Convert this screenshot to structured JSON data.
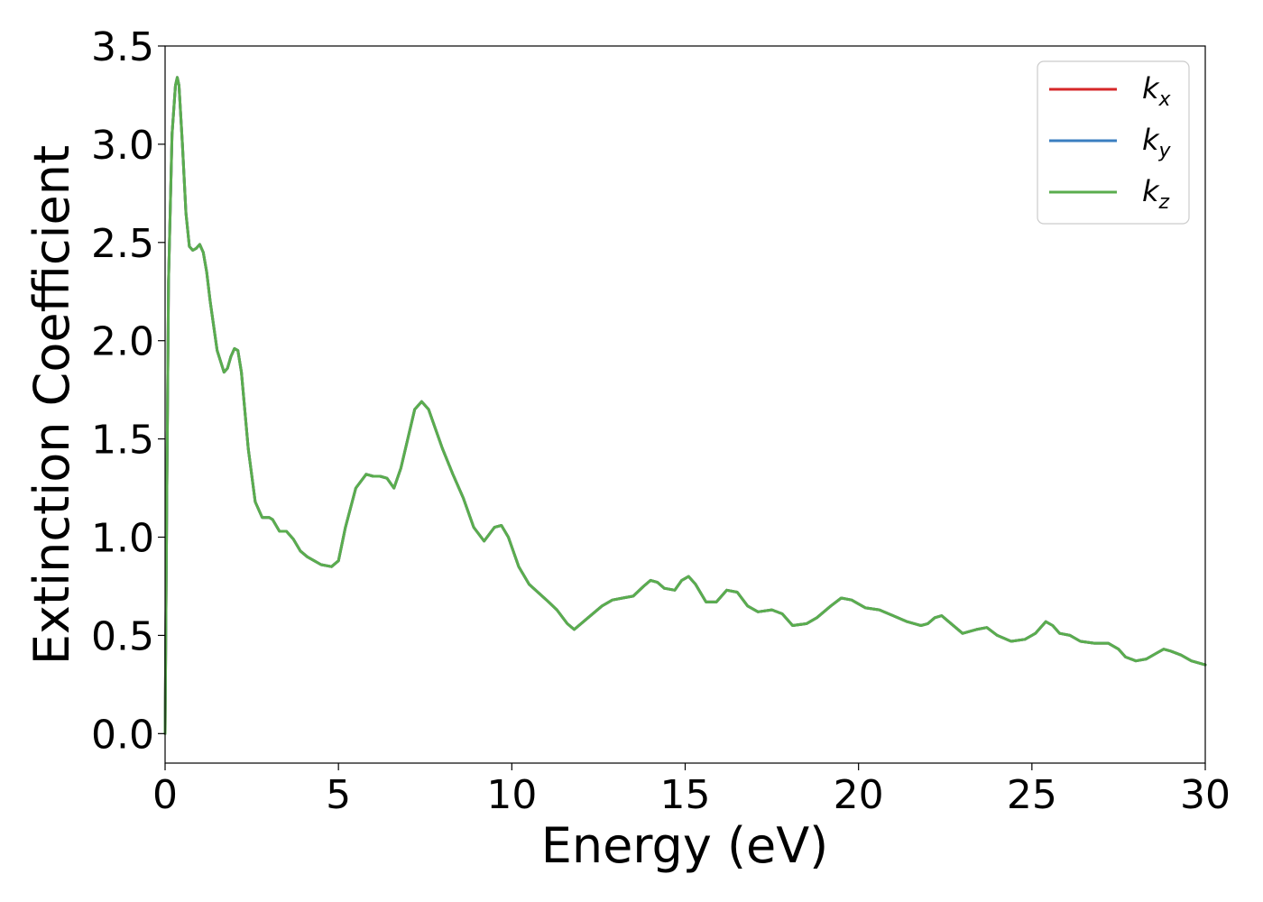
{
  "chart_data": {
    "type": "line",
    "title": "",
    "xlabel": "Energy (eV)",
    "ylabel": "Extinction Coefficient",
    "xlim": [
      0,
      30
    ],
    "ylim": [
      -0.15,
      3.5
    ],
    "xticks": [
      0,
      5,
      10,
      15,
      20,
      25,
      30
    ],
    "xtick_labels": [
      "0",
      "5",
      "10",
      "15",
      "20",
      "25",
      "30"
    ],
    "yticks": [
      0.0,
      0.5,
      1.0,
      1.5,
      2.0,
      2.5,
      3.0,
      3.5
    ],
    "ytick_labels": [
      "0.0",
      "0.5",
      "1.0",
      "1.5",
      "2.0",
      "2.5",
      "3.0",
      "3.5"
    ],
    "grid": false,
    "legend_position": "top-right",
    "series": [
      {
        "name": "kx",
        "base": "k",
        "sub": "x",
        "color": "#d62728",
        "x": [
          0,
          0.05,
          0.1,
          0.2,
          0.3,
          0.35,
          0.4,
          0.5,
          0.6,
          0.7,
          0.8,
          0.9,
          1.0,
          1.1,
          1.2,
          1.3,
          1.5,
          1.7,
          1.8,
          1.9,
          2.0,
          2.1,
          2.2,
          2.4,
          2.6,
          2.8,
          3.0,
          3.1,
          3.3,
          3.5,
          3.7,
          3.9,
          4.1,
          4.3,
          4.5,
          4.8,
          5.0,
          5.2,
          5.5,
          5.8,
          6.0,
          6.2,
          6.4,
          6.6,
          6.8,
          7.0,
          7.2,
          7.4,
          7.6,
          7.8,
          8.0,
          8.3,
          8.6,
          8.9,
          9.2,
          9.5,
          9.7,
          9.9,
          10.2,
          10.5,
          11.0,
          11.3,
          11.6,
          11.8,
          12.2,
          12.6,
          12.9,
          13.2,
          13.5,
          13.8,
          14.0,
          14.2,
          14.4,
          14.7,
          14.9,
          15.1,
          15.3,
          15.6,
          15.9,
          16.2,
          16.5,
          16.8,
          17.1,
          17.5,
          17.8,
          18.1,
          18.5,
          18.8,
          19.2,
          19.5,
          19.8,
          20.2,
          20.6,
          21.0,
          21.4,
          21.8,
          22.0,
          22.2,
          22.4,
          22.6,
          23.0,
          23.4,
          23.7,
          24.0,
          24.4,
          24.8,
          25.1,
          25.4,
          25.6,
          25.8,
          26.1,
          26.4,
          26.8,
          27.2,
          27.5,
          27.7,
          28.0,
          28.3,
          28.6,
          28.8,
          29.0,
          29.3,
          29.6,
          30.0
        ],
        "y": [
          0.0,
          1.2,
          2.3,
          3.05,
          3.3,
          3.34,
          3.3,
          3.0,
          2.65,
          2.48,
          2.46,
          2.47,
          2.49,
          2.45,
          2.35,
          2.2,
          1.95,
          1.84,
          1.86,
          1.92,
          1.96,
          1.95,
          1.84,
          1.45,
          1.18,
          1.1,
          1.1,
          1.09,
          1.03,
          1.03,
          0.99,
          0.93,
          0.9,
          0.88,
          0.86,
          0.85,
          0.88,
          1.05,
          1.25,
          1.32,
          1.31,
          1.31,
          1.3,
          1.25,
          1.35,
          1.5,
          1.65,
          1.69,
          1.65,
          1.55,
          1.45,
          1.32,
          1.2,
          1.05,
          0.98,
          1.05,
          1.06,
          1.0,
          0.85,
          0.76,
          0.68,
          0.63,
          0.56,
          0.53,
          0.59,
          0.65,
          0.68,
          0.69,
          0.7,
          0.75,
          0.78,
          0.77,
          0.74,
          0.73,
          0.78,
          0.8,
          0.76,
          0.67,
          0.67,
          0.73,
          0.72,
          0.65,
          0.62,
          0.63,
          0.61,
          0.55,
          0.56,
          0.59,
          0.65,
          0.69,
          0.68,
          0.64,
          0.63,
          0.6,
          0.57,
          0.55,
          0.56,
          0.59,
          0.6,
          0.57,
          0.51,
          0.53,
          0.54,
          0.5,
          0.47,
          0.48,
          0.51,
          0.57,
          0.55,
          0.51,
          0.5,
          0.47,
          0.46,
          0.46,
          0.43,
          0.39,
          0.37,
          0.38,
          0.41,
          0.43,
          0.42,
          0.4,
          0.37,
          0.35
        ]
      },
      {
        "name": "ky",
        "base": "k",
        "sub": "y",
        "color": "#3a7ec0",
        "x": [
          0,
          0.05,
          0.1,
          0.2,
          0.3,
          0.35,
          0.4,
          0.5,
          0.6,
          0.7,
          0.8,
          0.9,
          1.0,
          1.1,
          1.2,
          1.3,
          1.5,
          1.7,
          1.8,
          1.9,
          2.0,
          2.1,
          2.2,
          2.4,
          2.6,
          2.8,
          3.0,
          3.1,
          3.3,
          3.5,
          3.7,
          3.9,
          4.1,
          4.3,
          4.5,
          4.8,
          5.0,
          5.2,
          5.5,
          5.8,
          6.0,
          6.2,
          6.4,
          6.6,
          6.8,
          7.0,
          7.2,
          7.4,
          7.6,
          7.8,
          8.0,
          8.3,
          8.6,
          8.9,
          9.2,
          9.5,
          9.7,
          9.9,
          10.2,
          10.5,
          11.0,
          11.3,
          11.6,
          11.8,
          12.2,
          12.6,
          12.9,
          13.2,
          13.5,
          13.8,
          14.0,
          14.2,
          14.4,
          14.7,
          14.9,
          15.1,
          15.3,
          15.6,
          15.9,
          16.2,
          16.5,
          16.8,
          17.1,
          17.5,
          17.8,
          18.1,
          18.5,
          18.8,
          19.2,
          19.5,
          19.8,
          20.2,
          20.6,
          21.0,
          21.4,
          21.8,
          22.0,
          22.2,
          22.4,
          22.6,
          23.0,
          23.4,
          23.7,
          24.0,
          24.4,
          24.8,
          25.1,
          25.4,
          25.6,
          25.8,
          26.1,
          26.4,
          26.8,
          27.2,
          27.5,
          27.7,
          28.0,
          28.3,
          28.6,
          28.8,
          29.0,
          29.3,
          29.6,
          30.0
        ],
        "y": [
          0.0,
          1.2,
          2.3,
          3.05,
          3.3,
          3.34,
          3.3,
          3.0,
          2.65,
          2.48,
          2.46,
          2.47,
          2.49,
          2.45,
          2.35,
          2.2,
          1.95,
          1.84,
          1.86,
          1.92,
          1.96,
          1.95,
          1.84,
          1.45,
          1.18,
          1.1,
          1.1,
          1.09,
          1.03,
          1.03,
          0.99,
          0.93,
          0.9,
          0.88,
          0.86,
          0.85,
          0.88,
          1.05,
          1.25,
          1.32,
          1.31,
          1.31,
          1.3,
          1.25,
          1.35,
          1.5,
          1.65,
          1.69,
          1.65,
          1.55,
          1.45,
          1.32,
          1.2,
          1.05,
          0.98,
          1.05,
          1.06,
          1.0,
          0.85,
          0.76,
          0.68,
          0.63,
          0.56,
          0.53,
          0.59,
          0.65,
          0.68,
          0.69,
          0.7,
          0.75,
          0.78,
          0.77,
          0.74,
          0.73,
          0.78,
          0.8,
          0.76,
          0.67,
          0.67,
          0.73,
          0.72,
          0.65,
          0.62,
          0.63,
          0.61,
          0.55,
          0.56,
          0.59,
          0.65,
          0.69,
          0.68,
          0.64,
          0.63,
          0.6,
          0.57,
          0.55,
          0.56,
          0.59,
          0.6,
          0.57,
          0.51,
          0.53,
          0.54,
          0.5,
          0.47,
          0.48,
          0.51,
          0.57,
          0.55,
          0.51,
          0.5,
          0.47,
          0.46,
          0.46,
          0.43,
          0.39,
          0.37,
          0.38,
          0.41,
          0.43,
          0.42,
          0.4,
          0.37,
          0.35
        ]
      },
      {
        "name": "kz",
        "base": "k",
        "sub": "z",
        "color": "#5aad4e",
        "x": [
          0,
          0.05,
          0.1,
          0.2,
          0.3,
          0.35,
          0.4,
          0.5,
          0.6,
          0.7,
          0.8,
          0.9,
          1.0,
          1.1,
          1.2,
          1.3,
          1.5,
          1.7,
          1.8,
          1.9,
          2.0,
          2.1,
          2.2,
          2.4,
          2.6,
          2.8,
          3.0,
          3.1,
          3.3,
          3.5,
          3.7,
          3.9,
          4.1,
          4.3,
          4.5,
          4.8,
          5.0,
          5.2,
          5.5,
          5.8,
          6.0,
          6.2,
          6.4,
          6.6,
          6.8,
          7.0,
          7.2,
          7.4,
          7.6,
          7.8,
          8.0,
          8.3,
          8.6,
          8.9,
          9.2,
          9.5,
          9.7,
          9.9,
          10.2,
          10.5,
          11.0,
          11.3,
          11.6,
          11.8,
          12.2,
          12.6,
          12.9,
          13.2,
          13.5,
          13.8,
          14.0,
          14.2,
          14.4,
          14.7,
          14.9,
          15.1,
          15.3,
          15.6,
          15.9,
          16.2,
          16.5,
          16.8,
          17.1,
          17.5,
          17.8,
          18.1,
          18.5,
          18.8,
          19.2,
          19.5,
          19.8,
          20.2,
          20.6,
          21.0,
          21.4,
          21.8,
          22.0,
          22.2,
          22.4,
          22.6,
          23.0,
          23.4,
          23.7,
          24.0,
          24.4,
          24.8,
          25.1,
          25.4,
          25.6,
          25.8,
          26.1,
          26.4,
          26.8,
          27.2,
          27.5,
          27.7,
          28.0,
          28.3,
          28.6,
          28.8,
          29.0,
          29.3,
          29.6,
          30.0
        ],
        "y": [
          0.0,
          1.2,
          2.3,
          3.05,
          3.3,
          3.34,
          3.3,
          3.0,
          2.65,
          2.48,
          2.46,
          2.47,
          2.49,
          2.45,
          2.35,
          2.2,
          1.95,
          1.84,
          1.86,
          1.92,
          1.96,
          1.95,
          1.84,
          1.45,
          1.18,
          1.1,
          1.1,
          1.09,
          1.03,
          1.03,
          0.99,
          0.93,
          0.9,
          0.88,
          0.86,
          0.85,
          0.88,
          1.05,
          1.25,
          1.32,
          1.31,
          1.31,
          1.3,
          1.25,
          1.35,
          1.5,
          1.65,
          1.69,
          1.65,
          1.55,
          1.45,
          1.32,
          1.2,
          1.05,
          0.98,
          1.05,
          1.06,
          1.0,
          0.85,
          0.76,
          0.68,
          0.63,
          0.56,
          0.53,
          0.59,
          0.65,
          0.68,
          0.69,
          0.7,
          0.75,
          0.78,
          0.77,
          0.74,
          0.73,
          0.78,
          0.8,
          0.76,
          0.67,
          0.67,
          0.73,
          0.72,
          0.65,
          0.62,
          0.63,
          0.61,
          0.55,
          0.56,
          0.59,
          0.65,
          0.69,
          0.68,
          0.64,
          0.63,
          0.6,
          0.57,
          0.55,
          0.56,
          0.59,
          0.6,
          0.57,
          0.51,
          0.53,
          0.54,
          0.5,
          0.47,
          0.48,
          0.51,
          0.57,
          0.55,
          0.51,
          0.5,
          0.47,
          0.46,
          0.46,
          0.43,
          0.39,
          0.37,
          0.38,
          0.41,
          0.43,
          0.42,
          0.4,
          0.37,
          0.35
        ]
      }
    ]
  }
}
